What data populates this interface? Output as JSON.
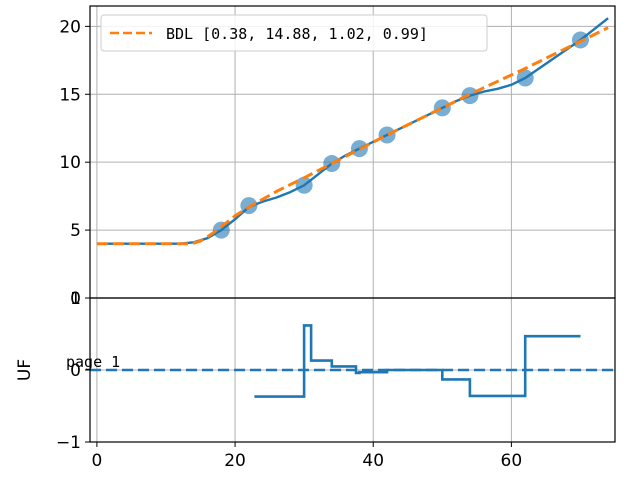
{
  "chart_data": [
    {
      "type": "scatter",
      "xlim": [
        -1,
        75
      ],
      "ylim": [
        0,
        21.5
      ],
      "grid": true,
      "x_ticks": [
        0,
        20,
        40,
        60
      ],
      "y_ticks": [
        0,
        5,
        10,
        15,
        20
      ],
      "legend": {
        "placement": "top-left",
        "entries": [
          {
            "label": "BDL [0.38, 14.88, 1.02, 0.99]",
            "style": "dashed",
            "color": "#ff7f0e"
          }
        ]
      },
      "series": [
        {
          "style": "points",
          "color": "#1f77b4",
          "x": [
            18,
            22,
            30,
            34,
            38,
            42,
            50,
            54,
            62,
            70
          ],
          "y": [
            5.0,
            6.8,
            8.3,
            9.9,
            11.0,
            12.0,
            14.0,
            14.9,
            16.2,
            19.0
          ]
        },
        {
          "style": "solid",
          "color": "#1f77b4",
          "x": [
            0,
            12,
            14,
            16,
            18,
            20,
            22,
            24,
            26,
            28,
            30,
            32,
            34,
            36,
            38,
            40,
            42,
            44,
            46,
            48,
            50,
            52,
            54,
            56,
            58,
            60,
            62,
            64,
            66,
            68,
            70,
            72,
            74
          ],
          "y": [
            4.0,
            4.0,
            4.1,
            4.4,
            5.0,
            5.8,
            6.7,
            7.1,
            7.4,
            7.8,
            8.3,
            9.1,
            9.9,
            10.5,
            11.0,
            11.5,
            12.0,
            12.5,
            13.0,
            13.5,
            14.0,
            14.5,
            14.9,
            15.2,
            15.4,
            15.7,
            16.2,
            16.9,
            17.6,
            18.3,
            19.0,
            19.8,
            20.6
          ]
        },
        {
          "name": "BDL [0.38, 14.88, 1.02, 0.99]",
          "style": "dashed",
          "color": "#ff7f0e",
          "x": [
            0,
            13,
            14,
            15,
            16,
            17,
            18,
            19,
            20,
            22,
            26,
            30,
            34,
            38,
            42,
            46,
            50,
            54,
            58,
            62,
            66,
            70,
            74
          ],
          "y": [
            4.0,
            4.0,
            4.05,
            4.2,
            4.5,
            4.85,
            5.25,
            5.65,
            6.05,
            6.7,
            7.85,
            8.85,
            9.9,
            10.95,
            12.0,
            13.0,
            14.0,
            15.0,
            15.95,
            16.9,
            17.9,
            18.9,
            19.9
          ]
        }
      ]
    },
    {
      "type": "line",
      "xlim": [
        -1,
        75
      ],
      "ylim": [
        -1,
        1
      ],
      "ylabel": "UF",
      "grid": true,
      "x_ticks": [
        0,
        20,
        40,
        60
      ],
      "y_ticks": [
        -1,
        0,
        1
      ],
      "annotation": "page 1",
      "series": [
        {
          "style": "step",
          "color": "#1f77b4",
          "x": [
            22.8,
            30.0,
            30.0,
            31.0,
            31.0,
            34.0,
            34.0,
            37.5,
            37.5,
            38.0,
            38.0,
            42.0,
            42.0,
            50.0,
            50.0,
            54.0,
            54.0,
            62.0,
            62.0,
            70.0
          ],
          "y": [
            -0.37,
            -0.37,
            0.62,
            0.62,
            0.13,
            0.13,
            0.05,
            0.05,
            -0.04,
            -0.04,
            -0.03,
            -0.03,
            0.0,
            0.0,
            -0.13,
            -0.13,
            -0.36,
            -0.36,
            0.47,
            0.47
          ]
        },
        {
          "style": "dashed",
          "color": "#1f77b4",
          "x": [
            -1,
            75
          ],
          "y": [
            0,
            0
          ]
        }
      ]
    }
  ]
}
